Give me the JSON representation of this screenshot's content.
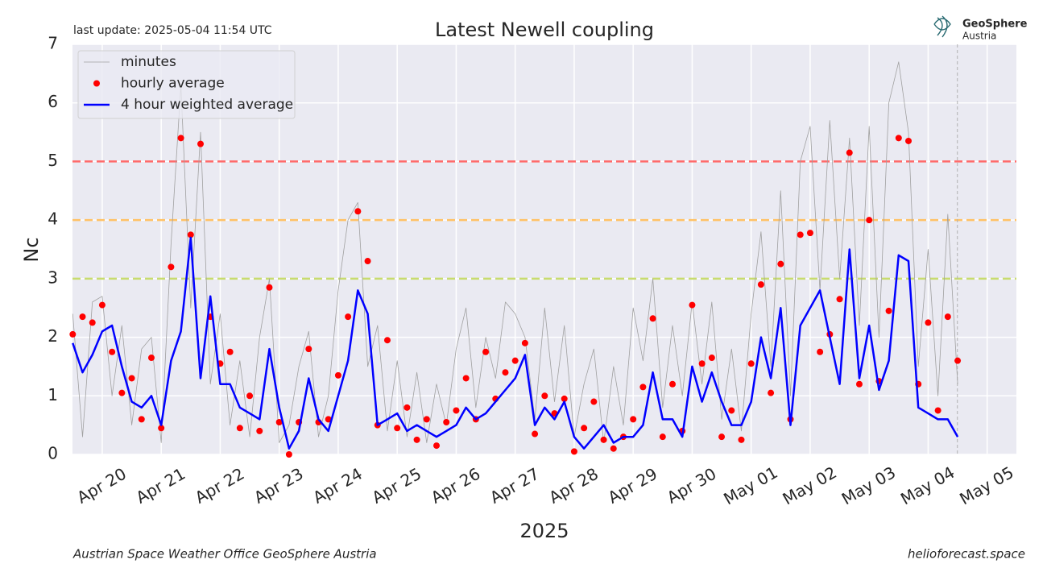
{
  "chart_data": {
    "type": "line",
    "title": "Latest Newell coupling",
    "subtitle": "last update: 2025-05-04 11:54 UTC",
    "ylabel": "Nc",
    "xlabel": "2025",
    "footer_left": "Austrian Space Weather Office   GeoSphere Austria",
    "footer_right": "helioforecast.space",
    "logo": [
      "GeoSphere",
      "Austria"
    ],
    "x": [
      "2025-04-19T12:00",
      "2025-04-19T16:00",
      "2025-04-19T20:00",
      "2025-04-20T00:00",
      "2025-04-20T04:00",
      "2025-04-20T08:00",
      "2025-04-20T12:00",
      "2025-04-20T16:00",
      "2025-04-20T20:00",
      "2025-04-21T00:00",
      "2025-04-21T04:00",
      "2025-04-21T08:00",
      "2025-04-21T12:00",
      "2025-04-21T16:00",
      "2025-04-21T20:00",
      "2025-04-22T00:00",
      "2025-04-22T04:00",
      "2025-04-22T08:00",
      "2025-04-22T12:00",
      "2025-04-22T16:00",
      "2025-04-22T20:00",
      "2025-04-23T00:00",
      "2025-04-23T04:00",
      "2025-04-23T08:00",
      "2025-04-23T12:00",
      "2025-04-23T16:00",
      "2025-04-23T20:00",
      "2025-04-24T00:00",
      "2025-04-24T04:00",
      "2025-04-24T08:00",
      "2025-04-24T12:00",
      "2025-04-24T16:00",
      "2025-04-24T20:00",
      "2025-04-25T00:00",
      "2025-04-25T04:00",
      "2025-04-25T08:00",
      "2025-04-25T12:00",
      "2025-04-25T16:00",
      "2025-04-25T20:00",
      "2025-04-26T00:00",
      "2025-04-26T04:00",
      "2025-04-26T08:00",
      "2025-04-26T12:00",
      "2025-04-26T16:00",
      "2025-04-26T20:00",
      "2025-04-27T00:00",
      "2025-04-27T04:00",
      "2025-04-27T08:00",
      "2025-04-27T12:00",
      "2025-04-27T16:00",
      "2025-04-27T20:00",
      "2025-04-28T00:00",
      "2025-04-28T04:00",
      "2025-04-28T08:00",
      "2025-04-28T12:00",
      "2025-04-28T16:00",
      "2025-04-28T20:00",
      "2025-04-29T00:00",
      "2025-04-29T04:00",
      "2025-04-29T08:00",
      "2025-04-29T12:00",
      "2025-04-29T16:00",
      "2025-04-29T20:00",
      "2025-04-30T00:00",
      "2025-04-30T04:00",
      "2025-04-30T08:00",
      "2025-04-30T12:00",
      "2025-04-30T16:00",
      "2025-04-30T20:00",
      "2025-05-01T00:00",
      "2025-05-01T04:00",
      "2025-05-01T08:00",
      "2025-05-01T12:00",
      "2025-05-01T16:00",
      "2025-05-01T20:00",
      "2025-05-02T00:00",
      "2025-05-02T04:00",
      "2025-05-02T08:00",
      "2025-05-02T12:00",
      "2025-05-02T16:00",
      "2025-05-02T20:00",
      "2025-05-03T00:00",
      "2025-05-03T04:00",
      "2025-05-03T08:00",
      "2025-05-03T12:00",
      "2025-05-03T16:00",
      "2025-05-03T20:00",
      "2025-05-04T00:00",
      "2025-05-04T04:00",
      "2025-05-04T08:00",
      "2025-05-04T12:00"
    ],
    "series": [
      {
        "name": "minutes",
        "color": "#a0a0a0",
        "style": "thin-line",
        "values": [
          2.4,
          0.3,
          2.6,
          2.7,
          1.0,
          2.2,
          0.5,
          1.8,
          2.0,
          0.2,
          3.6,
          6.3,
          2.5,
          5.5,
          1.2,
          2.4,
          0.5,
          1.6,
          0.3,
          2.0,
          3.0,
          0.2,
          0.5,
          1.5,
          2.1,
          0.3,
          1.0,
          2.8,
          4.0,
          4.3,
          1.5,
          2.2,
          0.4,
          1.6,
          0.3,
          1.4,
          0.2,
          1.2,
          0.5,
          1.8,
          2.5,
          0.8,
          2.0,
          1.3,
          2.6,
          2.4,
          2.0,
          0.6,
          2.5,
          0.9,
          2.2,
          0.3,
          1.2,
          1.8,
          0.2,
          1.5,
          0.5,
          2.5,
          1.6,
          3.0,
          0.8,
          2.2,
          1.0,
          2.6,
          1.2,
          2.6,
          0.6,
          1.8,
          0.4,
          2.4,
          3.8,
          1.5,
          4.5,
          1.0,
          5.0,
          5.6,
          2.8,
          5.7,
          3.0,
          5.4,
          2.2,
          5.6,
          2.0,
          6.0,
          6.7,
          5.5,
          1.5,
          3.5,
          1.0,
          4.1,
          1.2
        ]
      },
      {
        "name": "hourly average",
        "color": "#ff0000",
        "style": "dots",
        "values": [
          2.05,
          2.35,
          2.25,
          2.55,
          1.75,
          1.05,
          1.3,
          0.6,
          1.65,
          0.45,
          3.2,
          5.4,
          3.75,
          5.3,
          2.35,
          1.55,
          1.75,
          0.45,
          1.0,
          0.4,
          2.85,
          0.55,
          0.0,
          0.55,
          1.8,
          0.55,
          0.6,
          1.35,
          2.35,
          4.15,
          3.3,
          0.5,
          1.95,
          0.45,
          0.8,
          0.25,
          0.6,
          0.15,
          0.55,
          0.75,
          1.3,
          0.6,
          1.75,
          0.95,
          1.4,
          1.6,
          1.9,
          0.35,
          1.0,
          0.7,
          0.95,
          0.05,
          0.45,
          0.9,
          0.25,
          0.1,
          0.3,
          0.6,
          1.15,
          2.32,
          0.3,
          1.2,
          0.4,
          2.55,
          1.55,
          1.65,
          0.3,
          0.75,
          0.25,
          1.55,
          2.9,
          1.05,
          3.25,
          0.6,
          3.75,
          3.78,
          1.75,
          2.05,
          2.65,
          5.15,
          1.2,
          4.0,
          1.25,
          2.45,
          5.4,
          5.35,
          1.2,
          2.25,
          0.75,
          2.35,
          1.6
        ]
      },
      {
        "name": "4 hour weighted average",
        "color": "#0000ff",
        "style": "line",
        "values": [
          1.9,
          1.4,
          1.7,
          2.1,
          2.2,
          1.5,
          0.9,
          0.8,
          1.0,
          0.5,
          1.6,
          2.1,
          3.7,
          1.3,
          2.7,
          1.2,
          1.2,
          0.8,
          0.7,
          0.6,
          1.8,
          0.8,
          0.1,
          0.4,
          1.3,
          0.6,
          0.4,
          1.0,
          1.6,
          2.8,
          2.4,
          0.5,
          0.6,
          0.7,
          0.4,
          0.5,
          0.4,
          0.3,
          0.4,
          0.5,
          0.8,
          0.6,
          0.7,
          0.9,
          1.1,
          1.3,
          1.7,
          0.5,
          0.8,
          0.6,
          0.9,
          0.3,
          0.1,
          0.3,
          0.5,
          0.2,
          0.3,
          0.3,
          0.5,
          1.4,
          0.6,
          0.6,
          0.3,
          1.5,
          0.9,
          1.4,
          0.9,
          0.5,
          0.5,
          0.9,
          2.0,
          1.3,
          2.5,
          0.5,
          2.2,
          2.5,
          2.8,
          2.0,
          1.2,
          3.5,
          1.3,
          2.2,
          1.1,
          1.6,
          3.4,
          3.3,
          0.8,
          0.7,
          0.6,
          0.6,
          0.3
        ]
      }
    ],
    "thresholds": [
      {
        "value": 5,
        "color": "#ff6a6a"
      },
      {
        "value": 4,
        "color": "#ffc266"
      },
      {
        "value": 3,
        "color": "#c8dc6e"
      }
    ],
    "now_line": "2025-05-04T11:54",
    "xlim": [
      "2025-04-19T11:54",
      "2025-05-05T11:54"
    ],
    "xticks": [
      {
        "value": "2025-04-20T00:00",
        "label": "Apr 20"
      },
      {
        "value": "2025-04-21T00:00",
        "label": "Apr 21"
      },
      {
        "value": "2025-04-22T00:00",
        "label": "Apr 22"
      },
      {
        "value": "2025-04-23T00:00",
        "label": "Apr 23"
      },
      {
        "value": "2025-04-24T00:00",
        "label": "Apr 24"
      },
      {
        "value": "2025-04-25T00:00",
        "label": "Apr 25"
      },
      {
        "value": "2025-04-26T00:00",
        "label": "Apr 26"
      },
      {
        "value": "2025-04-27T00:00",
        "label": "Apr 27"
      },
      {
        "value": "2025-04-28T00:00",
        "label": "Apr 28"
      },
      {
        "value": "2025-04-29T00:00",
        "label": "Apr 29"
      },
      {
        "value": "2025-04-30T00:00",
        "label": "Apr 30"
      },
      {
        "value": "2025-05-01T00:00",
        "label": "May 01"
      },
      {
        "value": "2025-05-02T00:00",
        "label": "May 02"
      },
      {
        "value": "2025-05-03T00:00",
        "label": "May 03"
      },
      {
        "value": "2025-05-04T00:00",
        "label": "May 04"
      },
      {
        "value": "2025-05-05T00:00",
        "label": "May 05"
      }
    ],
    "ylim": [
      0,
      7
    ],
    "yticks": [
      0,
      1,
      2,
      3,
      4,
      5,
      6,
      7
    ],
    "grid": true,
    "legend": "upper left"
  }
}
